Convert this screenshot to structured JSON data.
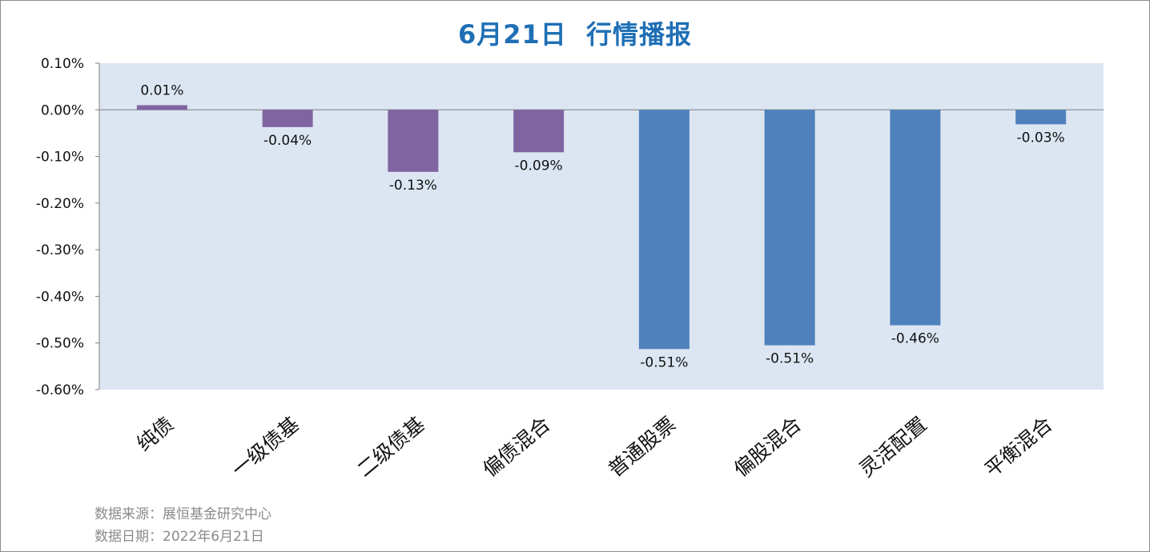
{
  "title": "6月21日  行情播报",
  "source_text": "数据来源：展恒基金研究中心",
  "date_text": "数据日期：2022年6月21日",
  "chart_data": {
    "type": "bar",
    "categories": [
      "纯债",
      "一级债基",
      "二级债基",
      "偏债混合",
      "普通股票",
      "偏股混合",
      "灵活配置",
      "平衡混合"
    ],
    "values": [
      0.0001,
      -0.0004,
      -0.0013,
      -0.0009,
      -0.0051,
      -0.0051,
      -0.0046,
      -0.0003
    ],
    "bar_values": [
      0.0001,
      -0.00037,
      -0.00133,
      -0.00091,
      -0.00513,
      -0.00505,
      -0.00462,
      -0.00031
    ],
    "data_labels": [
      "0.01%",
      "-0.04%",
      "-0.13%",
      "-0.09%",
      "-0.51%",
      "-0.51%",
      "-0.46%",
      "-0.03%"
    ],
    "bar_colors": [
      "#8064a2",
      "#8064a2",
      "#8064a2",
      "#8064a2",
      "#4f81bd",
      "#4f81bd",
      "#4f81bd",
      "#4f81bd"
    ],
    "yticks": [
      0.001,
      0,
      -0.001,
      -0.002,
      -0.003,
      -0.004,
      -0.005,
      -0.006
    ],
    "ytick_labels": [
      "0.10%",
      "0.00%",
      "-0.10%",
      "-0.20%",
      "-0.30%",
      "-0.40%",
      "-0.50%",
      "-0.60%"
    ],
    "ylim": [
      -0.006,
      0.001
    ],
    "plot_background": "#dce6f2",
    "xlabel": "",
    "ylabel": "",
    "grid": false,
    "legend": "none"
  }
}
